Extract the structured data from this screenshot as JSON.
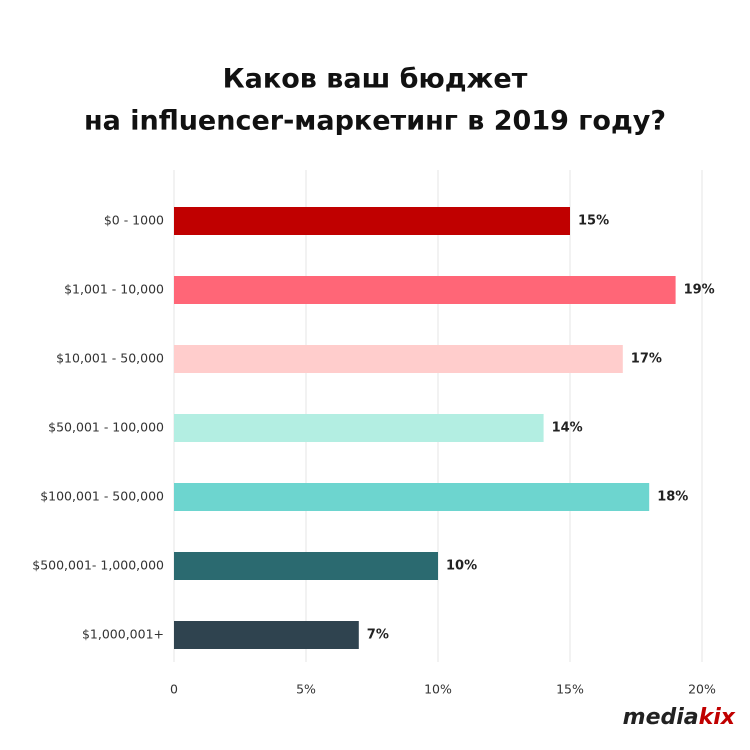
{
  "chart_data": {
    "type": "hbar",
    "title": [
      "Каков ваш бюджет",
      "на influencer-маркетинг в 2019 году?"
    ],
    "categories": [
      "$0 - 1000",
      "$1,001 - 10,000",
      "$10,001 - 50,000",
      "$50,001 - 100,000",
      "$100,001 - 500,000",
      "$500,001- 1,000,000",
      "$1,000,001+"
    ],
    "values": [
      15,
      19,
      17,
      14,
      18,
      10,
      7
    ],
    "value_labels": [
      "15%",
      "19%",
      "17%",
      "14%",
      "18%",
      "10%",
      "7%"
    ],
    "colors": [
      "#c00000",
      "#ff6677",
      "#ffcdcc",
      "#b3eee2",
      "#6dd5cf",
      "#2b6a70",
      "#2f434f"
    ],
    "xlim": [
      0,
      20
    ],
    "xticks": [
      0,
      {
        "value": 5,
        "label": "5%"
      },
      {
        "value": 10,
        "label": "10%"
      },
      {
        "value": 15,
        "label": "15%"
      },
      {
        "value": 20,
        "label": "20%"
      }
    ],
    "brand": [
      "media",
      "kix"
    ]
  }
}
